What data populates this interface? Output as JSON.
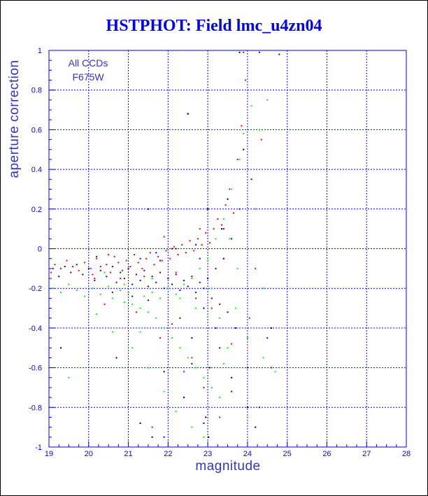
{
  "chart_data": {
    "type": "scatter",
    "title": "HSTPHOT: Field lmc_u4zn04",
    "xlabel": "magnitude",
    "ylabel": "aperture correction",
    "annotation": [
      "All CCDs",
      "F675W"
    ],
    "xlim": [
      19,
      28
    ],
    "ylim": [
      -1,
      1
    ],
    "x_ticks": [
      "19",
      "20",
      "21",
      "22",
      "23",
      "24",
      "25",
      "26",
      "27",
      "28"
    ],
    "y_ticks": [
      "-1",
      "-0.8",
      "-0.6",
      "-0.4",
      "-0.2",
      "0",
      "0.2",
      "0.4",
      "0.6",
      "0.8",
      "1"
    ],
    "grid": true,
    "series": [
      {
        "color": "#ff0000",
        "points": [
          [
            19.05,
            -0.12
          ],
          [
            19.15,
            -0.08
          ],
          [
            19.3,
            -0.1
          ],
          [
            19.45,
            -0.06
          ],
          [
            19.6,
            -0.09
          ],
          [
            19.75,
            -0.11
          ],
          [
            19.9,
            -0.07
          ],
          [
            20.05,
            -0.1
          ],
          [
            20.2,
            -0.05
          ],
          [
            20.3,
            -0.09
          ],
          [
            20.45,
            -0.08
          ],
          [
            20.55,
            -0.12
          ],
          [
            20.65,
            -0.04
          ],
          [
            20.75,
            -0.07
          ],
          [
            20.85,
            -0.11
          ],
          [
            20.95,
            -0.06
          ],
          [
            21.05,
            -0.09
          ],
          [
            21.15,
            -0.03
          ],
          [
            21.25,
            -0.07
          ],
          [
            21.35,
            -0.1
          ],
          [
            21.45,
            -0.05
          ],
          [
            21.55,
            -0.02
          ],
          [
            21.65,
            -0.08
          ],
          [
            21.75,
            -0.04
          ],
          [
            21.85,
            -0.06
          ],
          [
            21.95,
            -0.01
          ],
          [
            22.05,
            -0.05
          ],
          [
            22.15,
            0.01
          ],
          [
            22.25,
            -0.03
          ],
          [
            22.35,
            0.02
          ],
          [
            22.45,
            -0.02
          ],
          [
            22.55,
            0.04
          ],
          [
            22.65,
            -0.01
          ],
          [
            22.75,
            0.05
          ],
          [
            22.85,
            0.02
          ],
          [
            22.95,
            0.08
          ],
          [
            23.05,
            0.03
          ],
          [
            23.15,
            0.1
          ],
          [
            23.25,
            0.15
          ],
          [
            23.35,
            0.12
          ],
          [
            23.45,
            0.22
          ],
          [
            23.55,
            0.3
          ],
          [
            23.65,
            0.18
          ],
          [
            23.75,
            0.45
          ],
          [
            23.85,
            0.62
          ],
          [
            23.95,
            0.85
          ],
          [
            23.9,
            0.99
          ],
          [
            24.05,
            -0.35
          ],
          [
            24.2,
            -0.1
          ],
          [
            24.35,
            0.55
          ],
          [
            24.6,
            -0.6
          ],
          [
            22.6,
            -0.55
          ],
          [
            21.8,
            -0.45
          ],
          [
            22.9,
            -0.7
          ],
          [
            23.3,
            -0.85
          ],
          [
            21.2,
            -0.32
          ],
          [
            20.4,
            -0.28
          ],
          [
            22.1,
            -0.38
          ],
          [
            23.6,
            -0.48
          ],
          [
            22.4,
            -0.62
          ],
          [
            21.6,
            -0.9
          ],
          [
            23.1,
            -0.3
          ],
          [
            20.8,
            -0.15
          ],
          [
            22.7,
            -0.25
          ],
          [
            20.15,
            -0.15
          ],
          [
            21.4,
            -0.14
          ],
          [
            22.2,
            -0.12
          ],
          [
            23.4,
            -0.05
          ],
          [
            20.1,
            -0.13
          ],
          [
            20.5,
            -0.03
          ],
          [
            21.9,
            0.06
          ],
          [
            22.8,
            0.1
          ]
        ]
      },
      {
        "color": "#0000ff",
        "points": [
          [
            19.1,
            -0.1
          ],
          [
            19.25,
            -0.14
          ],
          [
            19.4,
            -0.09
          ],
          [
            19.55,
            -0.12
          ],
          [
            19.7,
            -0.08
          ],
          [
            19.85,
            -0.13
          ],
          [
            20.0,
            -0.1
          ],
          [
            20.15,
            -0.16
          ],
          [
            20.3,
            -0.11
          ],
          [
            20.45,
            -0.14
          ],
          [
            20.6,
            -0.09
          ],
          [
            20.7,
            -0.17
          ],
          [
            20.8,
            -0.12
          ],
          [
            20.9,
            -0.15
          ],
          [
            21.0,
            -0.1
          ],
          [
            21.1,
            -0.18
          ],
          [
            21.2,
            -0.13
          ],
          [
            21.3,
            -0.16
          ],
          [
            21.4,
            -0.11
          ],
          [
            21.5,
            -0.19
          ],
          [
            21.6,
            -0.14
          ],
          [
            21.7,
            -0.17
          ],
          [
            21.8,
            -0.12
          ],
          [
            21.9,
            -0.2
          ],
          [
            22.0,
            -0.15
          ],
          [
            22.1,
            -0.18
          ],
          [
            22.2,
            -0.13
          ],
          [
            22.3,
            -0.21
          ],
          [
            22.4,
            -0.16
          ],
          [
            22.5,
            -0.19
          ],
          [
            22.6,
            -0.14
          ],
          [
            22.7,
            -0.22
          ],
          [
            22.8,
            -0.17
          ],
          [
            22.9,
            -0.2
          ],
          [
            23.0,
            -0.15
          ],
          [
            23.1,
            -0.25
          ],
          [
            23.2,
            -0.1
          ],
          [
            23.3,
            -0.28
          ],
          [
            23.4,
            -0.05
          ],
          [
            23.5,
            -0.32
          ],
          [
            23.6,
            0.05
          ],
          [
            23.7,
            -0.4
          ],
          [
            23.8,
            0.2
          ],
          [
            24.0,
            -0.6
          ],
          [
            24.1,
            0.35
          ],
          [
            24.3,
            -0.8
          ],
          [
            24.5,
            -0.45
          ],
          [
            24.8,
            0.98
          ],
          [
            24.3,
            0.99
          ],
          [
            22.5,
            0.68
          ],
          [
            21.3,
            -0.05
          ],
          [
            21.7,
            -0.02
          ],
          [
            22.2,
            0.0
          ],
          [
            22.8,
            -0.05
          ],
          [
            20.6,
            -0.22
          ],
          [
            21.5,
            -0.26
          ],
          [
            22.3,
            -0.35
          ],
          [
            23.3,
            -0.5
          ],
          [
            23.6,
            -0.72
          ],
          [
            22.9,
            -0.88
          ],
          [
            21.9,
            -0.95
          ],
          [
            22.6,
            -0.58
          ],
          [
            23.2,
            -0.4
          ],
          [
            21.1,
            -0.24
          ],
          [
            20.2,
            -0.04
          ],
          [
            21.8,
            -0.06
          ],
          [
            22.7,
            0.02
          ],
          [
            23.4,
            0.1
          ]
        ]
      },
      {
        "color": "#00ff00",
        "points": [
          [
            19.1,
            -0.2
          ],
          [
            19.3,
            -0.22
          ],
          [
            19.5,
            -0.18
          ],
          [
            19.7,
            -0.21
          ],
          [
            19.9,
            -0.24
          ],
          [
            20.1,
            -0.2
          ],
          [
            20.3,
            -0.23
          ],
          [
            20.5,
            -0.19
          ],
          [
            20.6,
            -0.25
          ],
          [
            20.8,
            -0.21
          ],
          [
            20.9,
            -0.27
          ],
          [
            21.0,
            -0.22
          ],
          [
            21.1,
            -0.28
          ],
          [
            21.2,
            -0.2
          ],
          [
            21.3,
            -0.3
          ],
          [
            21.4,
            -0.24
          ],
          [
            21.5,
            -0.32
          ],
          [
            21.6,
            -0.22
          ],
          [
            21.7,
            -0.35
          ],
          [
            21.8,
            -0.25
          ],
          [
            21.9,
            -0.4
          ],
          [
            22.0,
            -0.2
          ],
          [
            22.1,
            -0.45
          ],
          [
            22.2,
            -0.23
          ],
          [
            22.3,
            -0.5
          ],
          [
            22.4,
            -0.18
          ],
          [
            22.5,
            -0.55
          ],
          [
            22.6,
            -0.15
          ],
          [
            22.7,
            -0.6
          ],
          [
            22.8,
            -0.1
          ],
          [
            22.9,
            -0.65
          ],
          [
            23.0,
            -0.05
          ],
          [
            23.1,
            -0.7
          ],
          [
            23.2,
            0.05
          ],
          [
            23.3,
            -0.75
          ],
          [
            23.4,
            0.15
          ],
          [
            23.5,
            -0.5
          ],
          [
            23.6,
            0.3
          ],
          [
            23.7,
            -0.3
          ],
          [
            23.8,
            0.45
          ],
          [
            23.9,
            0.58
          ],
          [
            24.0,
            -0.45
          ],
          [
            24.1,
            0.72
          ],
          [
            24.3,
            0.6
          ],
          [
            24.5,
            0.75
          ],
          [
            24.2,
            0.2
          ],
          [
            24.4,
            -0.2
          ],
          [
            24.7,
            -0.62
          ],
          [
            24.4,
            -0.55
          ],
          [
            19.5,
            -0.65
          ],
          [
            20.2,
            -0.33
          ],
          [
            20.6,
            -0.42
          ],
          [
            21.1,
            -0.5
          ],
          [
            21.5,
            -0.6
          ],
          [
            21.9,
            -0.72
          ],
          [
            22.2,
            -0.82
          ],
          [
            22.6,
            -0.9
          ],
          [
            22.9,
            -0.95
          ],
          [
            23.3,
            -0.35
          ],
          [
            23.1,
            -0.2
          ],
          [
            22.7,
            -0.3
          ],
          [
            22.3,
            -0.25
          ],
          [
            21.6,
            -0.15
          ],
          [
            20.9,
            -0.18
          ],
          [
            20.4,
            -0.12
          ],
          [
            23.55,
            0.05
          ],
          [
            23.75,
            -0.1
          ],
          [
            24.0,
            -0.85
          ],
          [
            23.4,
            -0.58
          ],
          [
            21.3,
            -0.42
          ]
        ]
      },
      {
        "color": "#000000",
        "points": [
          [
            22.5,
            0.68
          ],
          [
            23.8,
            0.99
          ],
          [
            23.0,
            0.2
          ],
          [
            22.9,
            -0.3
          ],
          [
            23.05,
            -0.6
          ],
          [
            22.95,
            -0.85
          ],
          [
            23.02,
            -0.95
          ],
          [
            22.4,
            -0.75
          ],
          [
            21.3,
            -0.88
          ],
          [
            21.6,
            -0.95
          ],
          [
            20.7,
            -0.55
          ],
          [
            19.3,
            -0.5
          ],
          [
            24.0,
            -0.8
          ],
          [
            24.2,
            -0.9
          ],
          [
            23.5,
            0.25
          ],
          [
            23.35,
            0.1
          ],
          [
            21.5,
            0.2
          ],
          [
            22.1,
            0.0
          ],
          [
            22.6,
            -0.45
          ],
          [
            23.6,
            -0.65
          ],
          [
            24.6,
            -0.4
          ],
          [
            21.9,
            -0.62
          ],
          [
            23.9,
            0.5
          ]
        ]
      }
    ]
  }
}
